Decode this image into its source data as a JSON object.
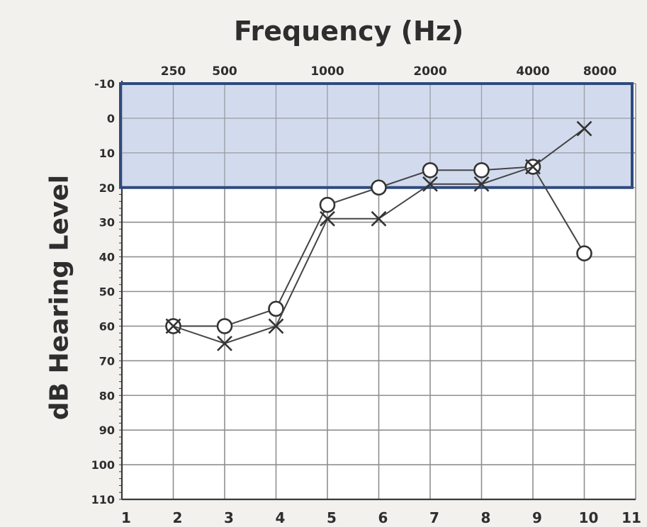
{
  "chart_data": {
    "type": "line",
    "title": "Frequency (Hz)",
    "ylabel": "dB Hearing Level",
    "x_top_labels": [
      {
        "x": 2,
        "label": "250"
      },
      {
        "x": 3,
        "label": "500"
      },
      {
        "x": 5,
        "label": "1000"
      },
      {
        "x": 7,
        "label": "2000"
      },
      {
        "x": 9,
        "label": "4000"
      },
      {
        "x": 10,
        "label": "8000"
      }
    ],
    "x_bottom_ticks": [
      1,
      2,
      3,
      4,
      5,
      6,
      7,
      8,
      9,
      10,
      11
    ],
    "xlim": [
      1,
      11
    ],
    "ylim": [
      -10,
      110
    ],
    "y_reversed": true,
    "y_ticks": [
      -10,
      0,
      10,
      20,
      30,
      40,
      50,
      60,
      70,
      80,
      90,
      100,
      110
    ],
    "grid": true,
    "highlight_band": {
      "y_from": -10,
      "y_to": 20,
      "fill": "#c7d2ea",
      "stroke": "#2f4a7e"
    },
    "series": [
      {
        "marker": "circle",
        "x": [
          2,
          3,
          4,
          5,
          6,
          7,
          8,
          9,
          10
        ],
        "y": [
          60,
          60,
          55,
          25,
          20,
          15,
          15,
          14,
          39
        ]
      },
      {
        "marker": "cross",
        "x": [
          2,
          3,
          4,
          5,
          6,
          7,
          8,
          9,
          10
        ],
        "y": [
          60,
          65,
          60,
          29,
          29,
          19,
          19,
          14,
          3
        ]
      }
    ]
  },
  "colors": {
    "background": "#f2f1ee",
    "grid": "#8f8f8f",
    "axis": "#3a3a3a",
    "text": "#2e2e2e",
    "line": "#444444"
  }
}
